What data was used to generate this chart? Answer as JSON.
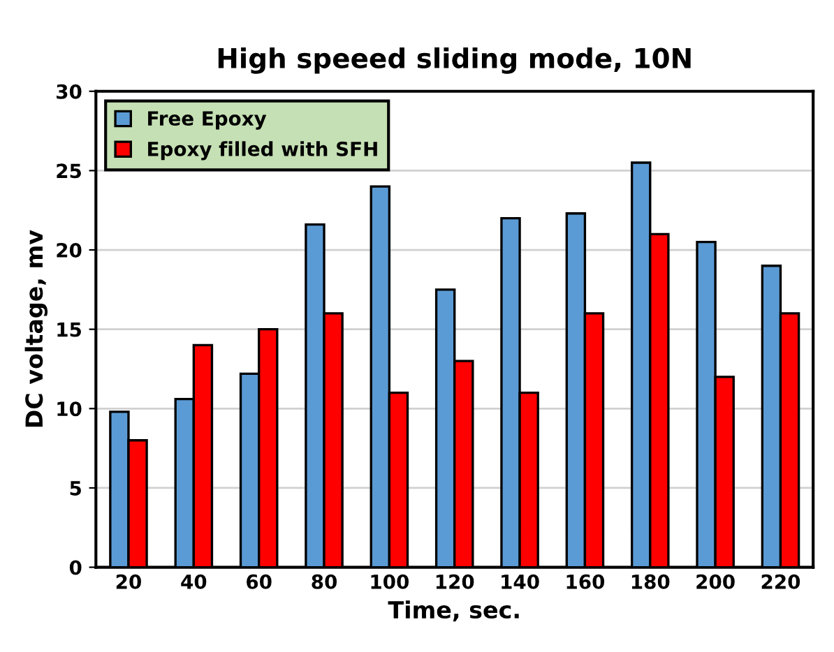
{
  "chart_data": {
    "type": "bar",
    "title": "High speeed sliding mode, 10N",
    "xlabel": "Time, sec.",
    "ylabel": "DC voltage, mv",
    "categories": [
      "20",
      "40",
      "60",
      "80",
      "100",
      "120",
      "140",
      "160",
      "180",
      "200",
      "220"
    ],
    "series": [
      {
        "name": "Free Epoxy",
        "color": "#5b9bd5",
        "values": [
          9.8,
          10.6,
          12.2,
          21.6,
          24,
          17.5,
          22.0,
          22.3,
          25.5,
          20.5,
          19.0
        ]
      },
      {
        "name": "Epoxy filled with SFH",
        "color": "#ff0000",
        "values": [
          8,
          14,
          15,
          16,
          11,
          13,
          11,
          16,
          21,
          12,
          16
        ]
      }
    ],
    "ylim": [
      0,
      30
    ],
    "yticks": [
      0,
      5,
      10,
      15,
      20,
      25,
      30
    ],
    "grid": "y",
    "legend": "top left"
  }
}
